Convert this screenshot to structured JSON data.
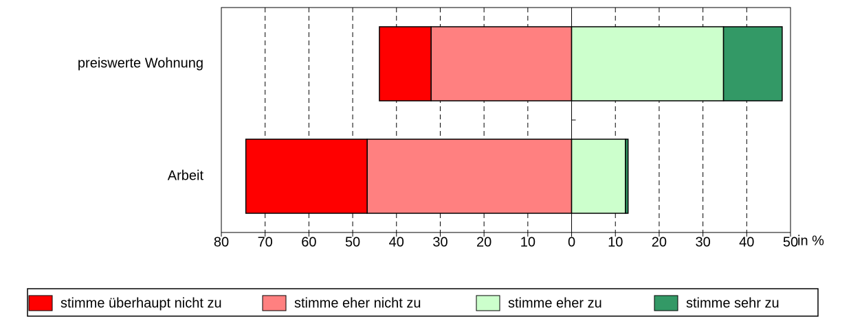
{
  "chart_data": {
    "type": "diverging_bar",
    "categories": [
      "preiswerte Wohnung",
      "Arbeit"
    ],
    "series": [
      {
        "name": "stimme überhaupt nicht zu",
        "color": "#ff0000",
        "values": [
          -11.8,
          -27.7
        ]
      },
      {
        "name": "stimme eher nicht zu",
        "color": "#ff8080",
        "values": [
          -32.1,
          -46.7
        ]
      },
      {
        "name": "stimme eher zu",
        "color": "#ccffcc",
        "values": [
          34.7,
          12.3
        ]
      },
      {
        "name": "stimme sehr zu",
        "color": "#339966",
        "values": [
          13.4,
          0.6
        ]
      }
    ],
    "x_label": "in %",
    "xlim": [
      -80,
      50
    ],
    "xticks": [
      {
        "value": -80,
        "label": "80"
      },
      {
        "value": -70,
        "label": "70"
      },
      {
        "value": -60,
        "label": "60"
      },
      {
        "value": -50,
        "label": "50"
      },
      {
        "value": -40,
        "label": "40"
      },
      {
        "value": -30,
        "label": "30"
      },
      {
        "value": -20,
        "label": "20"
      },
      {
        "value": -10,
        "label": "10"
      },
      0,
      10,
      20,
      30,
      40,
      50
    ],
    "grid": true,
    "legend": "bottom"
  }
}
